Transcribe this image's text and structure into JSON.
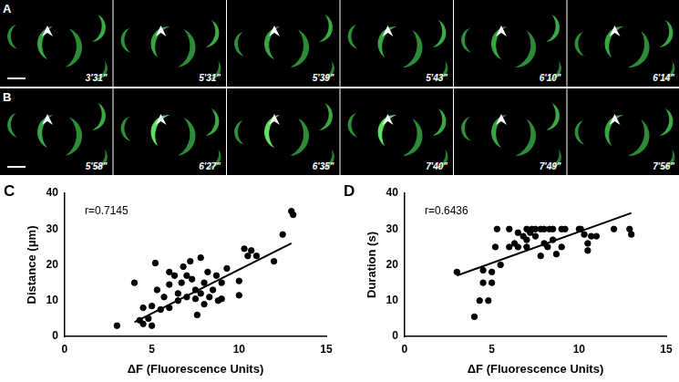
{
  "image_panels": [
    {
      "label": "A",
      "timestamps": [
        "3'31\"",
        "5'31\"",
        "5'39\"",
        "5'43\"",
        "6'10\"",
        "6'14\""
      ]
    },
    {
      "label": "B",
      "timestamps": [
        "5'58\"",
        "6'27\"",
        "6'35\"",
        "7'40\"",
        "7'49\"",
        "7'56\""
      ]
    }
  ],
  "chart_data": [
    {
      "type": "scatter",
      "panel": "C",
      "annotation": "r=0.7145",
      "x_label": "ΔF (Fluorescence Units)",
      "y_label": "Distance (μm)",
      "x": [
        3,
        4,
        4.3,
        4.5,
        4.5,
        4.8,
        5,
        5,
        5.2,
        5.3,
        5.5,
        5.7,
        6,
        6,
        6,
        6.3,
        6.5,
        6.5,
        6.7,
        6.8,
        7,
        7,
        7.2,
        7.3,
        7.5,
        7.5,
        7.6,
        7.8,
        7.8,
        8,
        8,
        8.2,
        8.3,
        8.5,
        8.7,
        8.8,
        9,
        9,
        9.3,
        10,
        10,
        10.3,
        10.5,
        10.7,
        11,
        12,
        12.5,
        13,
        13.1
      ],
      "values": [
        3,
        15,
        4.5,
        8,
        3.5,
        5,
        3,
        8.5,
        20.5,
        13,
        7.5,
        11,
        14.5,
        18,
        8,
        17,
        12,
        10,
        15,
        19.5,
        11,
        17,
        21,
        16,
        10.5,
        13,
        6,
        22,
        12,
        9,
        15,
        18,
        11,
        13,
        17,
        10,
        10.5,
        15,
        19,
        15.5,
        11.5,
        24.5,
        22.5,
        24,
        22.5,
        21,
        28.5,
        35,
        34
      ],
      "fit": {
        "x": [
          4,
          13
        ],
        "values": [
          4,
          26
        ]
      },
      "xlim": [
        0,
        15
      ],
      "xticks": [
        0,
        5,
        10,
        15
      ],
      "ylim": [
        0,
        40
      ],
      "yticks": [
        0,
        10,
        20,
        30,
        40
      ],
      "grid": false,
      "color": "#000000",
      "marker": "circle"
    },
    {
      "type": "scatter",
      "panel": "D",
      "annotation": "r=0.6436",
      "x_label": "ΔF (Fluorescence Units)",
      "y_label": "Duration (s)",
      "x": [
        3,
        4,
        4.3,
        4.5,
        4.5,
        4.8,
        5,
        5,
        5.2,
        5.3,
        5.5,
        6,
        6,
        6.3,
        6.5,
        6.5,
        6.8,
        7,
        7,
        7,
        7.2,
        7.3,
        7.5,
        7.5,
        7.8,
        7.8,
        8,
        8,
        8.2,
        8.3,
        8.5,
        8.5,
        8.7,
        9,
        9,
        9.2,
        10,
        10.1,
        10.3,
        10.5,
        10.5,
        10.7,
        11,
        12,
        12.9,
        13
      ],
      "values": [
        18,
        5.5,
        10,
        18.5,
        15,
        10,
        15,
        18,
        25,
        30,
        20,
        25,
        30,
        26,
        25,
        29,
        28,
        30,
        25,
        27,
        29,
        30,
        30,
        28,
        22.5,
        30,
        30,
        26,
        25,
        30,
        27,
        30,
        23,
        30,
        25,
        30,
        30,
        30,
        28.5,
        26,
        24,
        28,
        28,
        30,
        30,
        28.5
      ],
      "fit": {
        "x": [
          3,
          13
        ],
        "values": [
          17,
          34.5
        ]
      },
      "xlim": [
        0,
        15
      ],
      "xticks": [
        0,
        5,
        10,
        15
      ],
      "ylim": [
        0,
        40
      ],
      "yticks": [
        0,
        10,
        20,
        30,
        40
      ],
      "grid": false,
      "color": "#000000",
      "marker": "circle"
    }
  ]
}
